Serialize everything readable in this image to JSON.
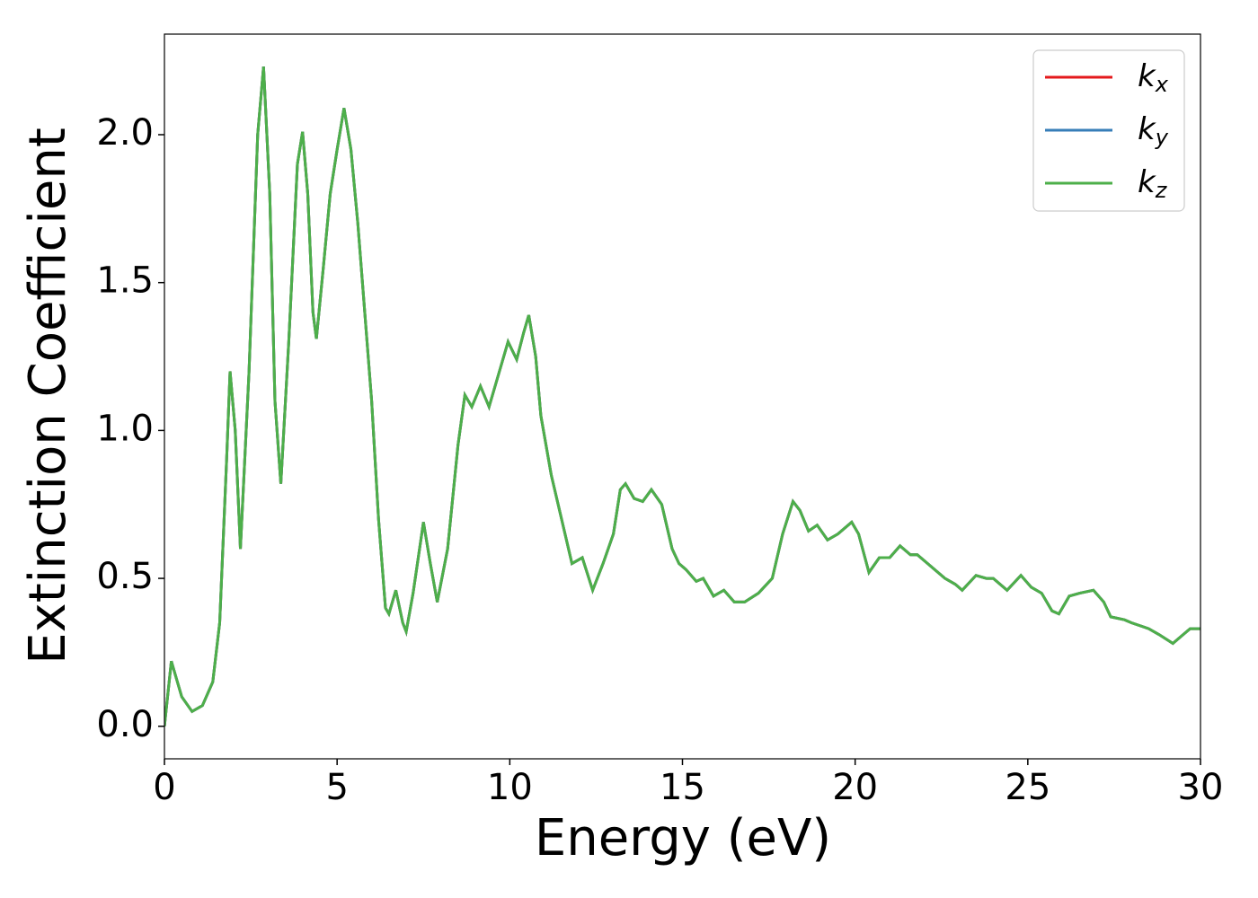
{
  "chart_data": {
    "type": "line",
    "xlabel": "Energy (eV)",
    "ylabel": "Extinction Coefficient",
    "x": [
      0,
      0.2,
      0.5,
      0.8,
      1.1,
      1.4,
      1.6,
      1.8,
      1.9,
      2.05,
      2.2,
      2.45,
      2.7,
      2.87,
      3.05,
      3.2,
      3.37,
      3.6,
      3.85,
      4.0,
      4.15,
      4.3,
      4.4,
      4.6,
      4.8,
      5.0,
      5.2,
      5.4,
      5.6,
      5.8,
      6.0,
      6.2,
      6.4,
      6.5,
      6.7,
      6.9,
      7.0,
      7.2,
      7.5,
      7.7,
      7.9,
      8.2,
      8.5,
      8.7,
      8.9,
      9.15,
      9.4,
      9.7,
      9.95,
      10.2,
      10.4,
      10.55,
      10.75,
      10.9,
      11.2,
      11.5,
      11.8,
      12.1,
      12.4,
      12.7,
      13.0,
      13.2,
      13.35,
      13.6,
      13.85,
      14.1,
      14.4,
      14.7,
      14.9,
      15.1,
      15.4,
      15.6,
      15.9,
      16.2,
      16.5,
      16.8,
      17.2,
      17.6,
      17.9,
      18.2,
      18.4,
      18.65,
      18.9,
      19.2,
      19.5,
      19.9,
      20.1,
      20.4,
      20.7,
      21.0,
      21.3,
      21.6,
      21.8,
      22.2,
      22.6,
      22.9,
      23.1,
      23.5,
      23.8,
      24.0,
      24.4,
      24.8,
      25.1,
      25.4,
      25.7,
      25.9,
      26.2,
      26.5,
      26.9,
      27.2,
      27.4,
      27.8,
      28.0,
      28.5,
      28.8,
      29.2,
      29.5,
      29.7,
      30.0
    ],
    "series": [
      {
        "name": "kx",
        "color": "#e41a1c",
        "values": [
          0,
          0.22,
          0.1,
          0.05,
          0.07,
          0.15,
          0.35,
          0.9,
          1.2,
          1.0,
          0.6,
          1.2,
          2.0,
          2.23,
          1.8,
          1.1,
          0.82,
          1.3,
          1.9,
          2.01,
          1.8,
          1.4,
          1.31,
          1.55,
          1.8,
          1.95,
          2.09,
          1.95,
          1.7,
          1.4,
          1.1,
          0.7,
          0.4,
          0.38,
          0.46,
          0.35,
          0.32,
          0.45,
          0.69,
          0.55,
          0.42,
          0.6,
          0.95,
          1.12,
          1.08,
          1.15,
          1.08,
          1.2,
          1.3,
          1.24,
          1.33,
          1.39,
          1.25,
          1.05,
          0.85,
          0.7,
          0.55,
          0.57,
          0.46,
          0.55,
          0.65,
          0.8,
          0.82,
          0.77,
          0.76,
          0.8,
          0.75,
          0.6,
          0.55,
          0.53,
          0.49,
          0.5,
          0.44,
          0.46,
          0.42,
          0.42,
          0.45,
          0.5,
          0.65,
          0.76,
          0.73,
          0.66,
          0.68,
          0.63,
          0.65,
          0.69,
          0.65,
          0.52,
          0.57,
          0.57,
          0.61,
          0.58,
          0.58,
          0.54,
          0.5,
          0.48,
          0.46,
          0.51,
          0.5,
          0.5,
          0.46,
          0.51,
          0.47,
          0.45,
          0.39,
          0.38,
          0.44,
          0.45,
          0.46,
          0.42,
          0.37,
          0.36,
          0.35,
          0.33,
          0.31,
          0.28,
          0.31,
          0.33,
          0.33
        ]
      },
      {
        "name": "ky",
        "color": "#377eb8",
        "values": [
          0,
          0.22,
          0.1,
          0.05,
          0.07,
          0.15,
          0.35,
          0.9,
          1.2,
          1.0,
          0.6,
          1.2,
          2.0,
          2.23,
          1.8,
          1.1,
          0.82,
          1.3,
          1.9,
          2.01,
          1.8,
          1.4,
          1.31,
          1.55,
          1.8,
          1.95,
          2.09,
          1.95,
          1.7,
          1.4,
          1.1,
          0.7,
          0.4,
          0.38,
          0.46,
          0.35,
          0.32,
          0.45,
          0.69,
          0.55,
          0.42,
          0.6,
          0.95,
          1.12,
          1.08,
          1.15,
          1.08,
          1.2,
          1.3,
          1.24,
          1.33,
          1.39,
          1.25,
          1.05,
          0.85,
          0.7,
          0.55,
          0.57,
          0.46,
          0.55,
          0.65,
          0.8,
          0.82,
          0.77,
          0.76,
          0.8,
          0.75,
          0.6,
          0.55,
          0.53,
          0.49,
          0.5,
          0.44,
          0.46,
          0.42,
          0.42,
          0.45,
          0.5,
          0.65,
          0.76,
          0.73,
          0.66,
          0.68,
          0.63,
          0.65,
          0.69,
          0.65,
          0.52,
          0.57,
          0.57,
          0.61,
          0.58,
          0.58,
          0.54,
          0.5,
          0.48,
          0.46,
          0.51,
          0.5,
          0.5,
          0.46,
          0.51,
          0.47,
          0.45,
          0.39,
          0.38,
          0.44,
          0.45,
          0.46,
          0.42,
          0.37,
          0.36,
          0.35,
          0.33,
          0.31,
          0.28,
          0.31,
          0.33,
          0.33
        ]
      },
      {
        "name": "kz",
        "color": "#4daf4a",
        "values": [
          0,
          0.22,
          0.1,
          0.05,
          0.07,
          0.15,
          0.35,
          0.9,
          1.2,
          1.0,
          0.6,
          1.2,
          2.0,
          2.23,
          1.8,
          1.1,
          0.82,
          1.3,
          1.9,
          2.01,
          1.8,
          1.4,
          1.31,
          1.55,
          1.8,
          1.95,
          2.09,
          1.95,
          1.7,
          1.4,
          1.1,
          0.7,
          0.4,
          0.38,
          0.46,
          0.35,
          0.32,
          0.45,
          0.69,
          0.55,
          0.42,
          0.6,
          0.95,
          1.12,
          1.08,
          1.15,
          1.08,
          1.2,
          1.3,
          1.24,
          1.33,
          1.39,
          1.25,
          1.05,
          0.85,
          0.7,
          0.55,
          0.57,
          0.46,
          0.55,
          0.65,
          0.8,
          0.82,
          0.77,
          0.76,
          0.8,
          0.75,
          0.6,
          0.55,
          0.53,
          0.49,
          0.5,
          0.44,
          0.46,
          0.42,
          0.42,
          0.45,
          0.5,
          0.65,
          0.76,
          0.73,
          0.66,
          0.68,
          0.63,
          0.65,
          0.69,
          0.65,
          0.52,
          0.57,
          0.57,
          0.61,
          0.58,
          0.58,
          0.54,
          0.5,
          0.48,
          0.46,
          0.51,
          0.5,
          0.5,
          0.46,
          0.51,
          0.47,
          0.45,
          0.39,
          0.38,
          0.44,
          0.45,
          0.46,
          0.42,
          0.37,
          0.36,
          0.35,
          0.33,
          0.31,
          0.28,
          0.31,
          0.33,
          0.33
        ]
      }
    ],
    "xlim": [
      0,
      30
    ],
    "xticks": [
      0,
      5,
      10,
      15,
      20,
      25,
      30
    ],
    "ylim": [
      -0.11,
      2.34
    ],
    "yticks": [
      {
        "value": 0,
        "label": "0.0"
      },
      {
        "value": 0.5,
        "label": "0.5"
      },
      {
        "value": 1,
        "label": "1.0"
      },
      {
        "value": 1.5,
        "label": "1.5"
      },
      {
        "value": 2,
        "label": "2.0"
      }
    ],
    "legend": "upper right",
    "grid": false
  }
}
